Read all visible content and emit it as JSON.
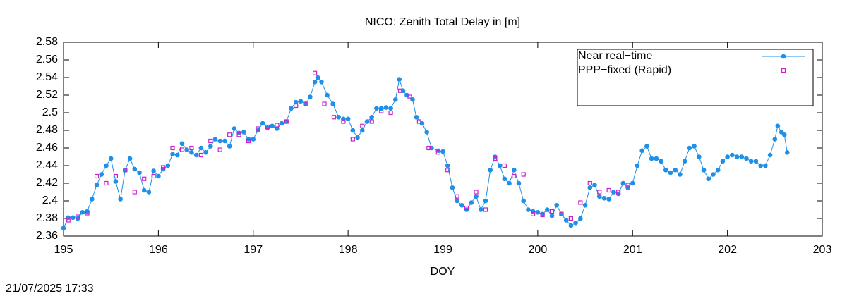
{
  "chart_data": {
    "type": "line",
    "title": "NICO: Zenith Total Delay in [m]",
    "xlabel": "DOY",
    "timestamp": "21/07/2025 17:33",
    "xlim": [
      195,
      203
    ],
    "xticks": [
      195,
      196,
      197,
      198,
      199,
      200,
      201,
      202,
      203
    ],
    "ylim": [
      2.36,
      2.58
    ],
    "yticks": [
      2.36,
      2.38,
      2.4,
      2.42,
      2.44,
      2.46,
      2.48,
      2.5,
      2.52,
      2.54,
      2.56,
      2.58
    ],
    "legend": "top-right",
    "series": [
      {
        "name": "Near real−time",
        "color": "#1e90e8",
        "style": "linespoints",
        "x": [
          195.0,
          195.05,
          195.1,
          195.15,
          195.2,
          195.25,
          195.3,
          195.35,
          195.4,
          195.45,
          195.5,
          195.55,
          195.6,
          195.65,
          195.7,
          195.75,
          195.8,
          195.85,
          195.9,
          195.95,
          196.0,
          196.05,
          196.1,
          196.15,
          196.2,
          196.25,
          196.3,
          196.35,
          196.4,
          196.45,
          196.5,
          196.55,
          196.6,
          196.65,
          196.7,
          196.75,
          196.8,
          196.85,
          196.9,
          196.95,
          197.0,
          197.05,
          197.1,
          197.15,
          197.2,
          197.25,
          197.3,
          197.35,
          197.4,
          197.45,
          197.5,
          197.55,
          197.6,
          197.65,
          197.68,
          197.72,
          197.78,
          197.84,
          197.9,
          197.95,
          198.0,
          198.05,
          198.1,
          198.15,
          198.2,
          198.25,
          198.3,
          198.35,
          198.4,
          198.45,
          198.5,
          198.54,
          198.58,
          198.62,
          198.68,
          198.72,
          198.78,
          198.83,
          198.88,
          198.95,
          199.0,
          199.05,
          199.1,
          199.15,
          199.2,
          199.25,
          199.3,
          199.35,
          199.4,
          199.45,
          199.5,
          199.55,
          199.6,
          199.65,
          199.7,
          199.75,
          199.8,
          199.85,
          199.9,
          199.95,
          200.0,
          200.05,
          200.1,
          200.15,
          200.2,
          200.25,
          200.3,
          200.35,
          200.4,
          200.45,
          200.5,
          200.55,
          200.6,
          200.65,
          200.7,
          200.75,
          200.8,
          200.85,
          200.9,
          200.95,
          201.0,
          201.05,
          201.1,
          201.15,
          201.2,
          201.25,
          201.3,
          201.35,
          201.4,
          201.45,
          201.5,
          201.55,
          201.6,
          201.65,
          201.7,
          201.75,
          201.8,
          201.85,
          201.9,
          201.95,
          202.0,
          202.05,
          202.1,
          202.15,
          202.2,
          202.25,
          202.3,
          202.35,
          202.4,
          202.45,
          202.5,
          202.53,
          202.57,
          202.6,
          202.63
        ],
        "values": [
          2.369,
          2.381,
          2.381,
          2.38,
          2.387,
          2.388,
          2.402,
          2.418,
          2.43,
          2.44,
          2.448,
          2.422,
          2.402,
          2.435,
          2.448,
          2.436,
          2.432,
          2.412,
          2.41,
          2.434,
          2.428,
          2.436,
          2.44,
          2.453,
          2.452,
          2.465,
          2.458,
          2.455,
          2.452,
          2.46,
          2.455,
          2.462,
          2.47,
          2.468,
          2.468,
          2.462,
          2.482,
          2.477,
          2.478,
          2.47,
          2.47,
          2.48,
          2.488,
          2.483,
          2.485,
          2.482,
          2.488,
          2.49,
          2.505,
          2.512,
          2.513,
          2.51,
          2.518,
          2.535,
          2.54,
          2.535,
          2.52,
          2.51,
          2.495,
          2.493,
          2.493,
          2.48,
          2.472,
          2.48,
          2.49,
          2.495,
          2.505,
          2.505,
          2.506,
          2.505,
          2.515,
          2.538,
          2.525,
          2.52,
          2.515,
          2.495,
          2.488,
          2.478,
          2.46,
          2.457,
          2.456,
          2.44,
          2.415,
          2.4,
          2.395,
          2.39,
          2.398,
          2.405,
          2.39,
          2.4,
          2.435,
          2.45,
          2.44,
          2.425,
          2.42,
          2.435,
          2.42,
          2.4,
          2.39,
          2.388,
          2.387,
          2.385,
          2.39,
          2.383,
          2.395,
          2.385,
          2.378,
          2.372,
          2.375,
          2.38,
          2.395,
          2.415,
          2.418,
          2.405,
          2.403,
          2.402,
          2.41,
          2.408,
          2.42,
          2.415,
          2.42,
          2.44,
          2.457,
          2.462,
          2.448,
          2.448,
          2.445,
          2.435,
          2.432,
          2.435,
          2.43,
          2.445,
          2.46,
          2.462,
          2.45,
          2.435,
          2.425,
          2.43,
          2.435,
          2.445,
          2.45,
          2.452,
          2.45,
          2.45,
          2.448,
          2.445,
          2.445,
          2.44,
          2.44,
          2.452,
          2.47,
          2.485,
          2.478,
          2.475,
          2.455
        ]
      },
      {
        "name": "PPP−fixed (Rapid)",
        "color": "#cc22cc",
        "style": "points",
        "x": [
          195.05,
          195.15,
          195.25,
          195.35,
          195.45,
          195.55,
          195.65,
          195.75,
          195.85,
          195.95,
          196.05,
          196.15,
          196.25,
          196.35,
          196.45,
          196.55,
          196.65,
          196.75,
          196.85,
          196.95,
          197.05,
          197.15,
          197.25,
          197.35,
          197.45,
          197.55,
          197.65,
          197.75,
          197.85,
          197.95,
          198.05,
          198.15,
          198.25,
          198.35,
          198.45,
          198.55,
          198.65,
          198.75,
          198.85,
          198.95,
          199.05,
          199.15,
          199.25,
          199.35,
          199.45,
          199.55,
          199.65,
          199.75,
          199.85,
          199.95,
          200.05,
          200.15,
          200.25,
          200.35,
          200.45,
          200.55,
          200.65,
          200.75,
          200.85,
          200.95
        ],
        "values": [
          2.378,
          2.382,
          2.386,
          2.428,
          2.42,
          2.428,
          2.435,
          2.41,
          2.425,
          2.428,
          2.438,
          2.46,
          2.458,
          2.46,
          2.452,
          2.468,
          2.458,
          2.475,
          2.475,
          2.468,
          2.482,
          2.484,
          2.486,
          2.49,
          2.508,
          2.51,
          2.545,
          2.51,
          2.495,
          2.49,
          2.47,
          2.485,
          2.49,
          2.502,
          2.5,
          2.525,
          2.518,
          2.49,
          2.46,
          2.455,
          2.435,
          2.405,
          2.392,
          2.41,
          2.39,
          2.448,
          2.44,
          2.428,
          2.43,
          2.385,
          2.384,
          2.388,
          2.385,
          2.38,
          2.398,
          2.42,
          2.41,
          2.412,
          2.41,
          2.418
        ]
      }
    ]
  }
}
